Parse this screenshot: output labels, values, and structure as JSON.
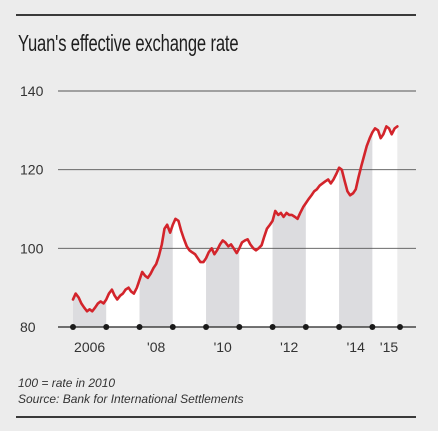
{
  "title": "Yuan's effective exchange rate",
  "footnote_base": "100 = rate in 2010",
  "footnote_source": "Source: Bank for International Settlements",
  "colors": {
    "line": "#d3242b",
    "band": "#dcdcdf",
    "band_alt": "#ffffff",
    "grid": "#555555",
    "background": "#ececec"
  },
  "chart_data": {
    "type": "line",
    "title": "Yuan's effective exchange rate",
    "xlabel": "",
    "ylabel": "",
    "ylim": [
      80,
      140
    ],
    "xlim": [
      2005.5,
      2016.0
    ],
    "yticks": [
      80,
      100,
      120,
      140
    ],
    "xticks": [
      {
        "value": 2006.5,
        "label": "2006"
      },
      {
        "value": 2008.5,
        "label": "'08"
      },
      {
        "value": 2010.5,
        "label": "'10"
      },
      {
        "value": 2012.5,
        "label": "'12"
      },
      {
        "value": 2014.5,
        "label": "'14"
      },
      {
        "value": 2015.5,
        "label": "'15"
      }
    ],
    "year_markers": [
      2006,
      2007,
      2008,
      2009,
      2010,
      2011,
      2012,
      2013,
      2014,
      2015
    ],
    "grid": true,
    "series": [
      {
        "values": [
          [
            2006.0,
            87.0
          ],
          [
            2006.08,
            88.5
          ],
          [
            2006.17,
            87.5
          ],
          [
            2006.25,
            86.0
          ],
          [
            2006.33,
            85.0
          ],
          [
            2006.42,
            84.0
          ],
          [
            2006.5,
            84.5
          ],
          [
            2006.58,
            84.0
          ],
          [
            2006.67,
            85.0
          ],
          [
            2006.75,
            86.0
          ],
          [
            2006.83,
            86.5
          ],
          [
            2006.92,
            86.0
          ],
          [
            2007.0,
            87.0
          ],
          [
            2007.08,
            88.5
          ],
          [
            2007.17,
            89.5
          ],
          [
            2007.25,
            88.0
          ],
          [
            2007.33,
            87.0
          ],
          [
            2007.42,
            88.0
          ],
          [
            2007.5,
            88.5
          ],
          [
            2007.58,
            89.5
          ],
          [
            2007.67,
            90.0
          ],
          [
            2007.75,
            89.0
          ],
          [
            2007.83,
            88.5
          ],
          [
            2007.92,
            90.0
          ],
          [
            2008.0,
            92.0
          ],
          [
            2008.08,
            94.0
          ],
          [
            2008.17,
            93.0
          ],
          [
            2008.25,
            92.5
          ],
          [
            2008.33,
            93.5
          ],
          [
            2008.42,
            95.0
          ],
          [
            2008.5,
            96.0
          ],
          [
            2008.58,
            98.0
          ],
          [
            2008.67,
            101.0
          ],
          [
            2008.75,
            105.0
          ],
          [
            2008.83,
            106.0
          ],
          [
            2008.92,
            104.0
          ],
          [
            2009.0,
            106.0
          ],
          [
            2009.08,
            107.5
          ],
          [
            2009.17,
            107.0
          ],
          [
            2009.25,
            104.5
          ],
          [
            2009.33,
            102.5
          ],
          [
            2009.42,
            100.5
          ],
          [
            2009.5,
            99.5
          ],
          [
            2009.58,
            99.0
          ],
          [
            2009.67,
            98.5
          ],
          [
            2009.75,
            97.5
          ],
          [
            2009.83,
            96.5
          ],
          [
            2009.92,
            96.5
          ],
          [
            2010.0,
            97.5
          ],
          [
            2010.08,
            99.0
          ],
          [
            2010.17,
            100.0
          ],
          [
            2010.25,
            98.5
          ],
          [
            2010.33,
            99.5
          ],
          [
            2010.42,
            101.0
          ],
          [
            2010.5,
            102.0
          ],
          [
            2010.58,
            101.5
          ],
          [
            2010.67,
            100.5
          ],
          [
            2010.75,
            101.0
          ],
          [
            2010.83,
            100.0
          ],
          [
            2010.92,
            98.8
          ],
          [
            2011.0,
            100.0
          ],
          [
            2011.08,
            101.5
          ],
          [
            2011.17,
            102.0
          ],
          [
            2011.25,
            102.3
          ],
          [
            2011.33,
            101.0
          ],
          [
            2011.42,
            100.0
          ],
          [
            2011.5,
            99.5
          ],
          [
            2011.58,
            100.0
          ],
          [
            2011.67,
            100.8
          ],
          [
            2011.75,
            103.0
          ],
          [
            2011.83,
            105.0
          ],
          [
            2011.92,
            106.0
          ],
          [
            2012.0,
            107.0
          ],
          [
            2012.08,
            109.5
          ],
          [
            2012.17,
            108.5
          ],
          [
            2012.25,
            109.0
          ],
          [
            2012.33,
            108.0
          ],
          [
            2012.42,
            109.0
          ],
          [
            2012.5,
            108.5
          ],
          [
            2012.58,
            108.5
          ],
          [
            2012.67,
            108.0
          ],
          [
            2012.75,
            107.5
          ],
          [
            2012.83,
            109.0
          ],
          [
            2012.92,
            110.5
          ],
          [
            2013.0,
            111.5
          ],
          [
            2013.08,
            112.5
          ],
          [
            2013.17,
            113.5
          ],
          [
            2013.25,
            114.5
          ],
          [
            2013.33,
            115.0
          ],
          [
            2013.42,
            116.0
          ],
          [
            2013.5,
            116.5
          ],
          [
            2013.58,
            117.0
          ],
          [
            2013.67,
            117.5
          ],
          [
            2013.75,
            116.5
          ],
          [
            2013.83,
            117.5
          ],
          [
            2013.92,
            119.0
          ],
          [
            2014.0,
            120.5
          ],
          [
            2014.08,
            120.0
          ],
          [
            2014.17,
            117.0
          ],
          [
            2014.25,
            114.5
          ],
          [
            2014.33,
            113.5
          ],
          [
            2014.42,
            114.0
          ],
          [
            2014.5,
            115.0
          ],
          [
            2014.58,
            118.0
          ],
          [
            2014.67,
            121.0
          ],
          [
            2014.75,
            123.5
          ],
          [
            2014.83,
            126.0
          ],
          [
            2014.92,
            128.0
          ],
          [
            2015.0,
            129.5
          ],
          [
            2015.08,
            130.5
          ],
          [
            2015.17,
            130.0
          ],
          [
            2015.25,
            128.0
          ],
          [
            2015.33,
            129.0
          ],
          [
            2015.42,
            131.0
          ],
          [
            2015.5,
            130.5
          ],
          [
            2015.58,
            129.0
          ],
          [
            2015.67,
            130.5
          ],
          [
            2015.75,
            131.0
          ]
        ]
      }
    ]
  }
}
